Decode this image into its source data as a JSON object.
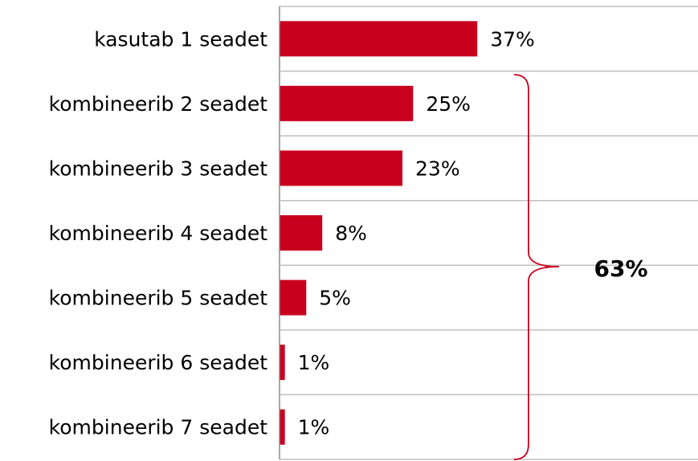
{
  "chart_data": {
    "type": "hbar",
    "categories": [
      "kasutab 1 seadet",
      "kombineerib 2 seadet",
      "kombineerib 3 seadet",
      "kombineerib 4 seadet",
      "kombineerib 5 seadet",
      "kombineerib 6 seadet",
      "kombineerib 7 seadet"
    ],
    "values": [
      37,
      25,
      23,
      8,
      5,
      1,
      1
    ],
    "value_labels": [
      "37%",
      "25%",
      "23%",
      "8%",
      "5%",
      "1%",
      "1%"
    ],
    "color": "#c8001e",
    "xlim": [
      0,
      78.3
    ],
    "annotations": [
      {
        "text": "63%"
      }
    ]
  }
}
